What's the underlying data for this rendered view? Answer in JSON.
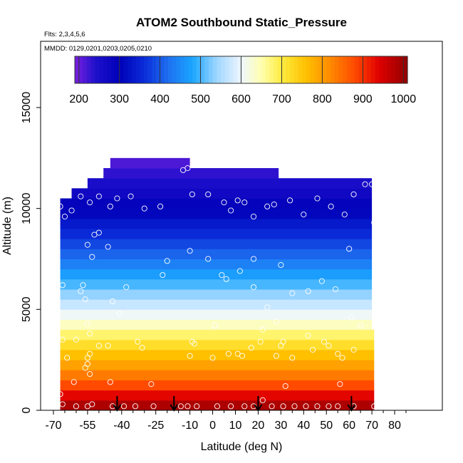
{
  "chart_data": {
    "type": "heatmap",
    "title": "ATOM2 Southbound Static_Pressure",
    "subtitle_lines": [
      "Flts: 2,3,4,5,6",
      "MMDD: 0129,0201,0203,0205,0210"
    ],
    "xlabel": "Latitude (deg N)",
    "ylabel": "Altitude (m)",
    "xlim": [
      -70,
      85
    ],
    "ylim": [
      0,
      17500
    ],
    "x_ticks": [
      -70,
      -55,
      -40,
      -25,
      -10,
      0,
      10,
      20,
      30,
      40,
      50,
      60,
      70,
      80
    ],
    "x_minor_ticks": [
      -65,
      -60,
      -50,
      -45,
      -35,
      -30,
      -20,
      -15,
      -5,
      5,
      15,
      25,
      35,
      45,
      55,
      65,
      75,
      85
    ],
    "y_ticks": [
      0,
      5000,
      10000,
      15000
    ],
    "colorbar": {
      "min": 190,
      "max": 1010,
      "ticks": [
        200,
        300,
        400,
        500,
        600,
        700,
        800,
        900,
        1000
      ],
      "stops": [
        {
          "v": 190,
          "c": "#7a1fe0"
        },
        {
          "v": 240,
          "c": "#1f10cc"
        },
        {
          "v": 300,
          "c": "#0000b8"
        },
        {
          "v": 360,
          "c": "#0a2ad8"
        },
        {
          "v": 420,
          "c": "#1e6ff0"
        },
        {
          "v": 480,
          "c": "#1aa6ff"
        },
        {
          "v": 540,
          "c": "#9fd6ff"
        },
        {
          "v": 600,
          "c": "#eef6ff"
        },
        {
          "v": 650,
          "c": "#ffffb0"
        },
        {
          "v": 700,
          "c": "#ffec40"
        },
        {
          "v": 760,
          "c": "#ffc000"
        },
        {
          "v": 820,
          "c": "#ff8a00"
        },
        {
          "v": 880,
          "c": "#ff4a00"
        },
        {
          "v": 940,
          "c": "#e00000"
        },
        {
          "v": 1010,
          "c": "#900000"
        }
      ]
    },
    "field_rows": [
      {
        "y0": 0,
        "y1": 500,
        "x0": -67,
        "x1": 71,
        "value": 985
      },
      {
        "y0": 500,
        "y1": 1000,
        "x0": -67,
        "x1": 71,
        "value": 935
      },
      {
        "y0": 1000,
        "y1": 1500,
        "x0": -67,
        "x1": 71,
        "value": 880
      },
      {
        "y0": 1500,
        "y1": 2000,
        "x0": -67,
        "x1": 71,
        "value": 835
      },
      {
        "y0": 2000,
        "y1": 2500,
        "x0": -67,
        "x1": 71,
        "value": 795
      },
      {
        "y0": 2500,
        "y1": 3000,
        "x0": -67,
        "x1": 71,
        "value": 760
      },
      {
        "y0": 3000,
        "y1": 3500,
        "x0": -67,
        "x1": 71,
        "value": 720
      },
      {
        "y0": 3500,
        "y1": 4000,
        "x0": -67,
        "x1": 71,
        "value": 680
      },
      {
        "y0": 4000,
        "y1": 4500,
        "x0": -67,
        "x1": 70,
        "value": 640
      },
      {
        "y0": 4500,
        "y1": 5000,
        "x0": -67,
        "x1": 70,
        "value": 605
      },
      {
        "y0": 5000,
        "y1": 5500,
        "x0": -67,
        "x1": 70,
        "value": 570
      },
      {
        "y0": 5500,
        "y1": 6000,
        "x0": -67,
        "x1": 70,
        "value": 535
      },
      {
        "y0": 6000,
        "y1": 6500,
        "x0": -67,
        "x1": 70,
        "value": 500
      },
      {
        "y0": 6500,
        "y1": 7000,
        "x0": -67,
        "x1": 70,
        "value": 470
      },
      {
        "y0": 7000,
        "y1": 7500,
        "x0": -67,
        "x1": 70,
        "value": 440
      },
      {
        "y0": 7500,
        "y1": 8000,
        "x0": -67,
        "x1": 70,
        "value": 410
      },
      {
        "y0": 8000,
        "y1": 8500,
        "x0": -67,
        "x1": 70,
        "value": 385
      },
      {
        "y0": 8500,
        "y1": 9000,
        "x0": -67,
        "x1": 70,
        "value": 360
      },
      {
        "y0": 9000,
        "y1": 9500,
        "x0": -67,
        "x1": 70,
        "value": 335
      },
      {
        "y0": 9500,
        "y1": 10000,
        "x0": -67,
        "x1": 70,
        "value": 310
      },
      {
        "y0": 10000,
        "y1": 10500,
        "x0": -67,
        "x1": 70,
        "value": 290
      },
      {
        "y0": 10500,
        "y1": 11000,
        "x0": -62,
        "x1": 70,
        "value": 270
      },
      {
        "y0": 11000,
        "y1": 11500,
        "x0": -55,
        "x1": 70,
        "value": 250
      },
      {
        "y0": 11500,
        "y1": 12000,
        "x0": -48,
        "x1": 29,
        "value": 232
      },
      {
        "y0": 12000,
        "y1": 12500,
        "x0": -45,
        "x1": -10,
        "value": 215
      }
    ],
    "points": [
      [
        -67,
        10100
      ],
      [
        -65,
        9600
      ],
      [
        -62,
        9900
      ],
      [
        -58,
        10600
      ],
      [
        -54,
        10300
      ],
      [
        -50,
        10600
      ],
      [
        -45,
        10100
      ],
      [
        -42,
        10500
      ],
      [
        -36,
        10600
      ],
      [
        -30,
        10000
      ],
      [
        -23,
        10100
      ],
      [
        -9,
        10700
      ],
      [
        -2,
        10700
      ],
      [
        5,
        10300
      ],
      [
        8,
        9900
      ],
      [
        11,
        10400
      ],
      [
        14,
        10300
      ],
      [
        18,
        9600
      ],
      [
        24,
        10100
      ],
      [
        27,
        10200
      ],
      [
        34,
        10400
      ],
      [
        40,
        9700
      ],
      [
        46,
        10500
      ],
      [
        52,
        10100
      ],
      [
        58,
        9700
      ],
      [
        62,
        10700
      ],
      [
        67,
        11200
      ],
      [
        70,
        11200
      ],
      [
        71,
        9300
      ],
      [
        -48,
        12200
      ],
      [
        -50,
        12000
      ],
      [
        -13,
        11900
      ],
      [
        -11,
        12000
      ],
      [
        -55,
        8200
      ],
      [
        -52,
        8700
      ],
      [
        -50,
        8800
      ],
      [
        -46,
        8100
      ],
      [
        -53,
        7600
      ],
      [
        -10,
        7900
      ],
      [
        -2,
        7500
      ],
      [
        -20,
        7400
      ],
      [
        12,
        6900
      ],
      [
        18,
        7500
      ],
      [
        30,
        7200
      ],
      [
        4,
        6700
      ],
      [
        6,
        6500
      ],
      [
        60,
        8000
      ],
      [
        -66,
        6200
      ],
      [
        -57,
        6200
      ],
      [
        -58,
        5900
      ],
      [
        -56,
        5500
      ],
      [
        -44,
        5400
      ],
      [
        -38,
        6100
      ],
      [
        -22,
        6700
      ],
      [
        18,
        6100
      ],
      [
        35,
        5800
      ],
      [
        42,
        5900
      ],
      [
        48,
        6400
      ],
      [
        54,
        6000
      ],
      [
        24,
        5100
      ],
      [
        61,
        4600
      ],
      [
        -41,
        4800
      ],
      [
        -55,
        4300
      ],
      [
        -54,
        3800
      ],
      [
        -60,
        3500
      ],
      [
        -46,
        3200
      ],
      [
        -31,
        3100
      ],
      [
        -33,
        3400
      ],
      [
        -9,
        3400
      ],
      [
        -10,
        2700
      ],
      [
        -54,
        2800
      ],
      [
        -50,
        3200
      ],
      [
        -66,
        3500
      ],
      [
        -64,
        2600
      ],
      [
        -55,
        2600
      ],
      [
        -55,
        2300
      ],
      [
        -56,
        2100
      ],
      [
        -54,
        1800
      ],
      [
        -61,
        1400
      ],
      [
        -45,
        1400
      ],
      [
        -27,
        1300
      ],
      [
        0,
        2600
      ],
      [
        7,
        2800
      ],
      [
        13,
        2700
      ],
      [
        17,
        3100
      ],
      [
        22,
        4000
      ],
      [
        21,
        3400
      ],
      [
        30,
        3200
      ],
      [
        28,
        2700
      ],
      [
        35,
        2600
      ],
      [
        44,
        3000
      ],
      [
        49,
        3400
      ],
      [
        51,
        3200
      ],
      [
        55,
        2800
      ],
      [
        57,
        2600
      ],
      [
        62,
        3000
      ],
      [
        -67,
        800
      ],
      [
        -66,
        300
      ],
      [
        -60,
        200
      ],
      [
        -55,
        200
      ],
      [
        -53,
        300
      ],
      [
        -44,
        200
      ],
      [
        -39,
        200
      ],
      [
        -34,
        200
      ],
      [
        -26,
        200
      ],
      [
        -14,
        200
      ],
      [
        -11,
        200
      ],
      [
        -7,
        200
      ],
      [
        2,
        200
      ],
      [
        8,
        200
      ],
      [
        14,
        200
      ],
      [
        18,
        200
      ],
      [
        22,
        500
      ],
      [
        26,
        200
      ],
      [
        31,
        200
      ],
      [
        36,
        200
      ],
      [
        41,
        200
      ],
      [
        46,
        200
      ],
      [
        51,
        200
      ],
      [
        55,
        200
      ],
      [
        62,
        200
      ],
      [
        71,
        200
      ],
      [
        32,
        1200
      ],
      [
        56,
        1300
      ],
      [
        11,
        2800
      ],
      [
        -8,
        3300
      ],
      [
        31,
        3400
      ],
      [
        1,
        4200
      ],
      [
        28,
        4400
      ],
      [
        42,
        3700
      ],
      [
        65,
        4200
      ]
    ],
    "arrows_x": [
      -42,
      -17,
      20,
      61
    ]
  }
}
